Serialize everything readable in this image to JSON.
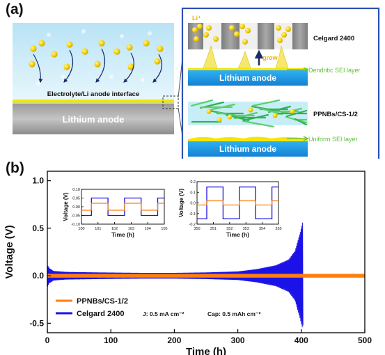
{
  "panel_a": {
    "label": "(a)",
    "interface_text": "Electrolyte/Li anode interface",
    "anode_text": "Lithium anode",
    "li_ion_label": "Li⁺",
    "grow_label": "grow",
    "top_separator": "Celgard 2400",
    "top_layer": "Dendritic SEI layer",
    "top_anode": "Lithium anode",
    "bottom_separator": "PPNBs/CS-1/2",
    "bottom_layer": "Uniform SEI layer",
    "bottom_anode": "Lithium anode"
  },
  "panel_b": {
    "label": "(b)",
    "annotations": {
      "current": "J: 0.5 mA cm⁻²",
      "capacity": "Cap: 0.5 mAh cm⁻²"
    }
  },
  "colors": {
    "ppnb": "#ff7f0e",
    "celgard": "#1a12e6",
    "sei_green": "#5fbf3a",
    "anode_blue": "#1e9fe8",
    "frame_blue": "#2c4fb0"
  },
  "chart_data": [
    {
      "type": "line",
      "title": "",
      "xlabel": "Time (h)",
      "ylabel": "Voltage (V)",
      "xlim": [
        0,
        500
      ],
      "ylim": [
        -0.6,
        1.1
      ],
      "xticks": [
        "0",
        "100",
        "200",
        "300",
        "400",
        "500"
      ],
      "yticks": [
        "-0.5",
        "0.0",
        "0.5",
        "1.0"
      ],
      "legend_position": "bottom-left",
      "series": [
        {
          "name": "PPNBs/CS-1/2",
          "color": "#ff7f0e",
          "x": [
            0,
            500
          ],
          "amplitude": [
            0.02,
            0.02
          ]
        },
        {
          "name": "Celgard 2400",
          "color": "#1a12e6",
          "x": [
            0,
            3,
            10,
            30,
            80,
            150,
            200,
            250,
            300,
            330,
            360,
            380,
            390,
            398,
            402,
            403
          ],
          "amplitude": [
            0.12,
            0.08,
            0.05,
            0.04,
            0.035,
            0.03,
            0.03,
            0.035,
            0.045,
            0.07,
            0.11,
            0.17,
            0.26,
            0.45,
            0.56,
            0.5
          ]
        }
      ]
    },
    {
      "type": "line",
      "title": "",
      "xlabel": "Time (h)",
      "ylabel": "Voltage (V)",
      "xlim": [
        100,
        105
      ],
      "ylim": [
        -0.1,
        0.1
      ],
      "xticks": [
        "100",
        "101",
        "102",
        "103",
        "104",
        "105"
      ],
      "yticks": [
        "-0.10",
        "-0.05",
        "0.00",
        "0.05",
        "0.10"
      ],
      "series": [
        {
          "name": "PPNBs/CS-1/2",
          "color": "#ff7f0e",
          "period": 2,
          "half_start_high": 100.6,
          "high": 0.02,
          "low": -0.02
        },
        {
          "name": "Celgard 2400",
          "color": "#1a12e6",
          "period": 2,
          "half_start_high": 100.6,
          "high": 0.05,
          "low": -0.05
        }
      ]
    },
    {
      "type": "line",
      "title": "",
      "xlabel": "Time (h)",
      "ylabel": "Voltage (V)",
      "xlim": [
        350,
        355
      ],
      "ylim": [
        -0.2,
        0.2
      ],
      "xticks": [
        "350",
        "351",
        "352",
        "353",
        "354",
        "355"
      ],
      "yticks": [
        "-0.2",
        "-0.1",
        "0.0",
        "0.1",
        "0.2"
      ],
      "series": [
        {
          "name": "PPNBs/CS-1/2",
          "color": "#ff7f0e",
          "period": 2,
          "half_start_high": 350.6,
          "high": 0.02,
          "low": -0.02
        },
        {
          "name": "Celgard 2400",
          "color": "#1a12e6",
          "period": 2,
          "half_start_high": 350.6,
          "high": 0.15,
          "low": -0.15
        }
      ]
    }
  ]
}
